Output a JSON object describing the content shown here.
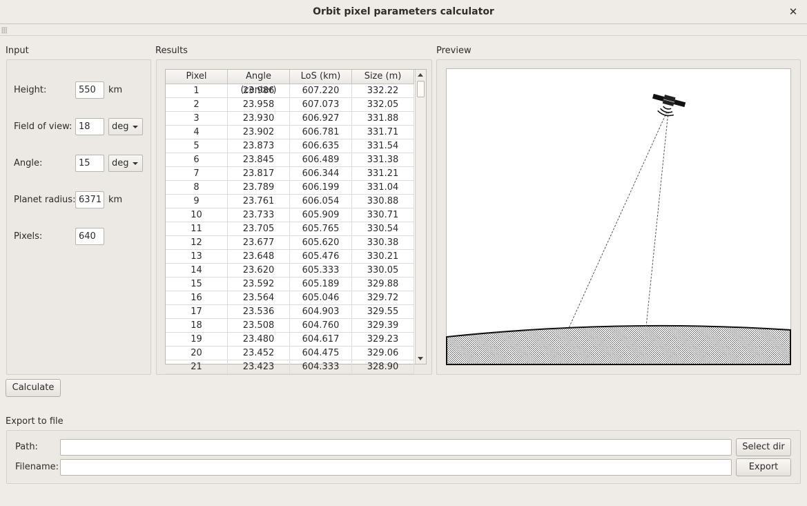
{
  "window": {
    "title": "Orbit pixel parameters calculator",
    "close": "✕"
  },
  "input": {
    "title": "Input",
    "height": {
      "label": "Height:",
      "value": "550",
      "unit": "km"
    },
    "fov": {
      "label": "Field of view:",
      "value": "18",
      "unit": "deg"
    },
    "angle": {
      "label": "Angle:",
      "value": "15",
      "unit": "deg"
    },
    "radius": {
      "label": "Planet radius:",
      "value": "6371",
      "unit": "km"
    },
    "pixels": {
      "label": "Pixels:",
      "value": "640"
    }
  },
  "results": {
    "title": "Results",
    "columns": [
      "Pixel",
      "Angle (center)",
      "LoS (km)",
      "Size (m)"
    ],
    "rows": [
      [
        "1",
        "23.986",
        "607.220",
        "332.22"
      ],
      [
        "2",
        "23.958",
        "607.073",
        "332.05"
      ],
      [
        "3",
        "23.930",
        "606.927",
        "331.88"
      ],
      [
        "4",
        "23.902",
        "606.781",
        "331.71"
      ],
      [
        "5",
        "23.873",
        "606.635",
        "331.54"
      ],
      [
        "6",
        "23.845",
        "606.489",
        "331.38"
      ],
      [
        "7",
        "23.817",
        "606.344",
        "331.21"
      ],
      [
        "8",
        "23.789",
        "606.199",
        "331.04"
      ],
      [
        "9",
        "23.761",
        "606.054",
        "330.88"
      ],
      [
        "10",
        "23.733",
        "605.909",
        "330.71"
      ],
      [
        "11",
        "23.705",
        "605.765",
        "330.54"
      ],
      [
        "12",
        "23.677",
        "605.620",
        "330.38"
      ],
      [
        "13",
        "23.648",
        "605.476",
        "330.21"
      ],
      [
        "14",
        "23.620",
        "605.333",
        "330.05"
      ],
      [
        "15",
        "23.592",
        "605.189",
        "329.88"
      ],
      [
        "16",
        "23.564",
        "605.046",
        "329.72"
      ],
      [
        "17",
        "23.536",
        "604.903",
        "329.55"
      ],
      [
        "18",
        "23.508",
        "604.760",
        "329.39"
      ],
      [
        "19",
        "23.480",
        "604.617",
        "329.23"
      ],
      [
        "20",
        "23.452",
        "604.475",
        "329.06"
      ],
      [
        "21",
        "23.423",
        "604.333",
        "328.90"
      ]
    ]
  },
  "preview": {
    "title": "Preview"
  },
  "calculate_label": "Calculate",
  "export": {
    "title": "Export to file",
    "path_label": "Path:",
    "path_value": "",
    "select_dir_label": "Select dir",
    "filename_label": "Filename:",
    "filename_value": "",
    "export_label": "Export"
  }
}
